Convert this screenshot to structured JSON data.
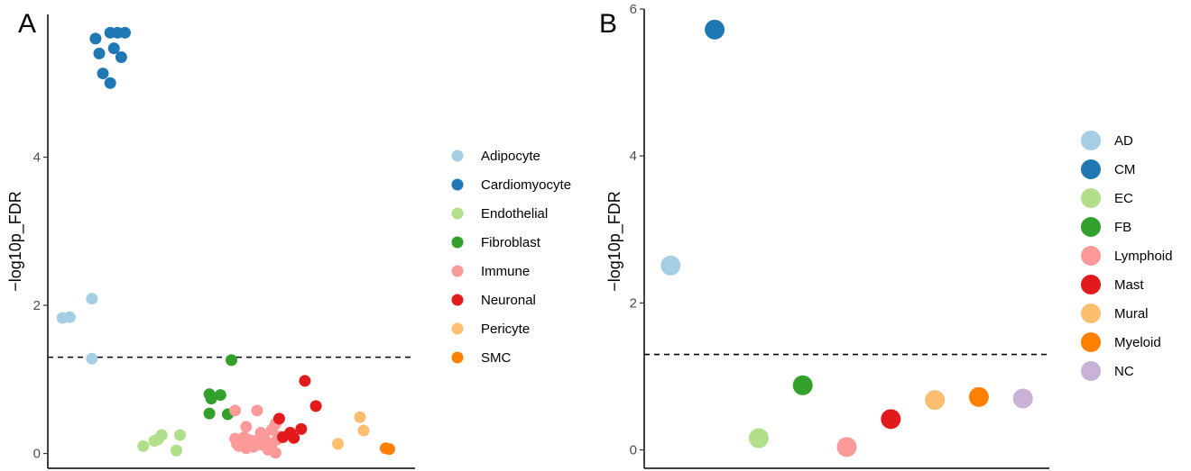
{
  "panels": [
    {
      "letter": "A",
      "chart_data": {
        "type": "scatter",
        "ylabel": "−log10p_FDR",
        "xlabel": "",
        "yticks": [
          0,
          2,
          4
        ],
        "ylim": [
          -0.2,
          6.0
        ],
        "xlim": [
          0,
          100
        ],
        "threshold": 1.3,
        "legend_position": "right",
        "series": [
          {
            "name": "Adipocyte",
            "color": "#a6cee3",
            "points": [
              [
                4,
                1.83
              ],
              [
                6,
                1.84
              ],
              [
                12,
                2.09
              ],
              [
                12,
                1.28
              ]
            ]
          },
          {
            "name": "Cardiomyocyte",
            "color": "#1f78b4",
            "points": [
              [
                13,
                5.6
              ],
              [
                14,
                5.4
              ],
              [
                15,
                5.13
              ],
              [
                17,
                5.0
              ],
              [
                17,
                5.68
              ],
              [
                18,
                5.47
              ],
              [
                19,
                5.68
              ],
              [
                20,
                5.35
              ],
              [
                21,
                5.68
              ]
            ]
          },
          {
            "name": "Endothelial",
            "color": "#b2df8a",
            "points": [
              [
                26,
                0.1
              ],
              [
                29,
                0.17
              ],
              [
                30,
                0.19
              ],
              [
                31,
                0.25
              ],
              [
                35,
                0.04
              ],
              [
                36,
                0.25
              ]
            ]
          },
          {
            "name": "Fibroblast",
            "color": "#33a02c",
            "points": [
              [
                44,
                0.8
              ],
              [
                44.5,
                0.74
              ],
              [
                44,
                0.54
              ],
              [
                47,
                0.79
              ],
              [
                49,
                0.53
              ],
              [
                50,
                1.26
              ]
            ]
          },
          {
            "name": "Immune",
            "color": "#fb9a99",
            "points": [
              [
                51,
                0.58
              ],
              [
                51,
                0.2
              ],
              [
                52,
                0.1
              ],
              [
                53,
                0.15
              ],
              [
                54,
                0.36
              ],
              [
                54,
                0.07
              ],
              [
                55,
                0.18
              ],
              [
                56,
                0.09
              ],
              [
                57,
                0.58
              ],
              [
                58,
                0.28
              ],
              [
                58,
                0.12
              ],
              [
                59,
                0.2
              ],
              [
                60,
                0.05
              ],
              [
                61,
                0.13
              ],
              [
                61,
                0.32
              ],
              [
                62,
                0.4
              ],
              [
                62,
                0.01
              ],
              [
                63,
                0.23
              ],
              [
                51.5,
                0.13
              ],
              [
                53.5,
                0.22
              ],
              [
                56.5,
                0.17
              ],
              [
                59.5,
                0.09
              ],
              [
                62.5,
                0.19
              ]
            ]
          },
          {
            "name": "Neuronal",
            "color": "#e31a1c",
            "points": [
              [
                63,
                0.47
              ],
              [
                64,
                0.22
              ],
              [
                66,
                0.28
              ],
              [
                67,
                0.21
              ],
              [
                69,
                0.33
              ],
              [
                70,
                0.98
              ],
              [
                73,
                0.64
              ]
            ]
          },
          {
            "name": "Pericyte",
            "color": "#fdbf6f",
            "points": [
              [
                79,
                0.13
              ],
              [
                85,
                0.49
              ],
              [
                86,
                0.31
              ]
            ]
          },
          {
            "name": "SMC",
            "color": "#ff7f00",
            "points": [
              [
                92,
                0.07
              ],
              [
                93,
                0.06
              ]
            ]
          }
        ]
      }
    },
    {
      "letter": "B",
      "chart_data": {
        "type": "scatter",
        "ylabel": "−log10p_FDR",
        "xlabel": "",
        "yticks": [
          0,
          2,
          4,
          6
        ],
        "ylim": [
          -0.25,
          6.0
        ],
        "xlim": [
          0.4,
          9.6
        ],
        "threshold": 1.3,
        "legend_position": "right",
        "series": [
          {
            "name": "AD",
            "color": "#a6cee3",
            "points": [
              [
                1,
                2.51
              ]
            ]
          },
          {
            "name": "CM",
            "color": "#1f78b4",
            "points": [
              [
                2,
                5.72
              ]
            ]
          },
          {
            "name": "EC",
            "color": "#b2df8a",
            "points": [
              [
                3,
                0.16
              ]
            ]
          },
          {
            "name": "FB",
            "color": "#33a02c",
            "points": [
              [
                4,
                0.88
              ]
            ]
          },
          {
            "name": "Lymphoid",
            "color": "#fb9a99",
            "points": [
              [
                5,
                0.04
              ]
            ]
          },
          {
            "name": "Mast",
            "color": "#e31a1c",
            "points": [
              [
                6,
                0.42
              ]
            ]
          },
          {
            "name": "Mural",
            "color": "#fdbf6f",
            "points": [
              [
                7,
                0.68
              ]
            ]
          },
          {
            "name": "Myeloid",
            "color": "#ff7f00",
            "points": [
              [
                8,
                0.72
              ]
            ]
          },
          {
            "name": "NC",
            "color": "#cab2d6",
            "points": [
              [
                9,
                0.7
              ]
            ]
          }
        ]
      }
    }
  ]
}
